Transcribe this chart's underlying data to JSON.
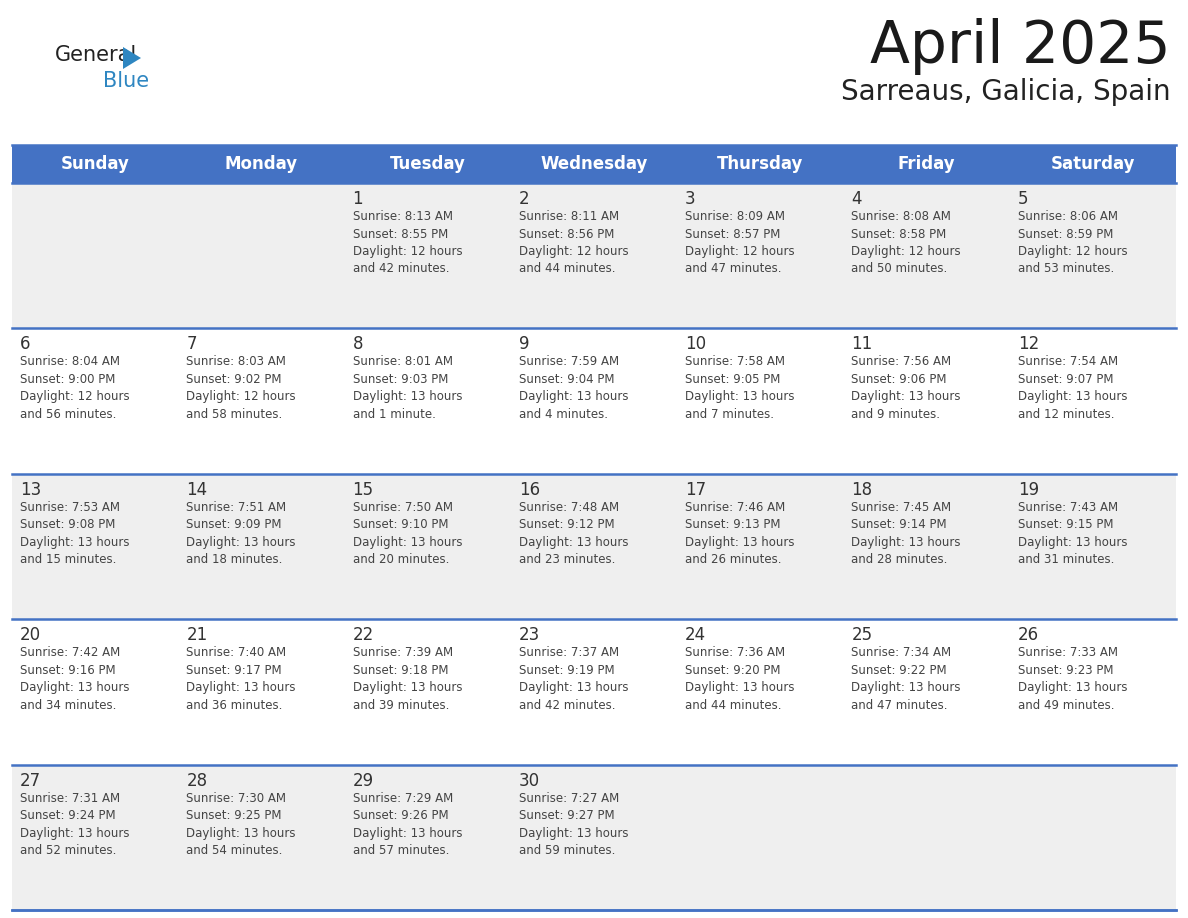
{
  "title": "April 2025",
  "subtitle": "Sarreaus, Galicia, Spain",
  "header_bg": "#4472C4",
  "header_text_color": "#FFFFFF",
  "day_names": [
    "Sunday",
    "Monday",
    "Tuesday",
    "Wednesday",
    "Thursday",
    "Friday",
    "Saturday"
  ],
  "row_bg_odd": "#EFEFEF",
  "row_bg_even": "#FFFFFF",
  "cell_text_color": "#444444",
  "day_num_color": "#333333",
  "grid_line_color": "#4472C4",
  "logo_general_color": "#222222",
  "logo_blue_color": "#2E86C1",
  "logo_triangle_color": "#2E86C1",
  "weeks": [
    [
      {
        "day": "",
        "info": ""
      },
      {
        "day": "",
        "info": ""
      },
      {
        "day": "1",
        "info": "Sunrise: 8:13 AM\nSunset: 8:55 PM\nDaylight: 12 hours\nand 42 minutes."
      },
      {
        "day": "2",
        "info": "Sunrise: 8:11 AM\nSunset: 8:56 PM\nDaylight: 12 hours\nand 44 minutes."
      },
      {
        "day": "3",
        "info": "Sunrise: 8:09 AM\nSunset: 8:57 PM\nDaylight: 12 hours\nand 47 minutes."
      },
      {
        "day": "4",
        "info": "Sunrise: 8:08 AM\nSunset: 8:58 PM\nDaylight: 12 hours\nand 50 minutes."
      },
      {
        "day": "5",
        "info": "Sunrise: 8:06 AM\nSunset: 8:59 PM\nDaylight: 12 hours\nand 53 minutes."
      }
    ],
    [
      {
        "day": "6",
        "info": "Sunrise: 8:04 AM\nSunset: 9:00 PM\nDaylight: 12 hours\nand 56 minutes."
      },
      {
        "day": "7",
        "info": "Sunrise: 8:03 AM\nSunset: 9:02 PM\nDaylight: 12 hours\nand 58 minutes."
      },
      {
        "day": "8",
        "info": "Sunrise: 8:01 AM\nSunset: 9:03 PM\nDaylight: 13 hours\nand 1 minute."
      },
      {
        "day": "9",
        "info": "Sunrise: 7:59 AM\nSunset: 9:04 PM\nDaylight: 13 hours\nand 4 minutes."
      },
      {
        "day": "10",
        "info": "Sunrise: 7:58 AM\nSunset: 9:05 PM\nDaylight: 13 hours\nand 7 minutes."
      },
      {
        "day": "11",
        "info": "Sunrise: 7:56 AM\nSunset: 9:06 PM\nDaylight: 13 hours\nand 9 minutes."
      },
      {
        "day": "12",
        "info": "Sunrise: 7:54 AM\nSunset: 9:07 PM\nDaylight: 13 hours\nand 12 minutes."
      }
    ],
    [
      {
        "day": "13",
        "info": "Sunrise: 7:53 AM\nSunset: 9:08 PM\nDaylight: 13 hours\nand 15 minutes."
      },
      {
        "day": "14",
        "info": "Sunrise: 7:51 AM\nSunset: 9:09 PM\nDaylight: 13 hours\nand 18 minutes."
      },
      {
        "day": "15",
        "info": "Sunrise: 7:50 AM\nSunset: 9:10 PM\nDaylight: 13 hours\nand 20 minutes."
      },
      {
        "day": "16",
        "info": "Sunrise: 7:48 AM\nSunset: 9:12 PM\nDaylight: 13 hours\nand 23 minutes."
      },
      {
        "day": "17",
        "info": "Sunrise: 7:46 AM\nSunset: 9:13 PM\nDaylight: 13 hours\nand 26 minutes."
      },
      {
        "day": "18",
        "info": "Sunrise: 7:45 AM\nSunset: 9:14 PM\nDaylight: 13 hours\nand 28 minutes."
      },
      {
        "day": "19",
        "info": "Sunrise: 7:43 AM\nSunset: 9:15 PM\nDaylight: 13 hours\nand 31 minutes."
      }
    ],
    [
      {
        "day": "20",
        "info": "Sunrise: 7:42 AM\nSunset: 9:16 PM\nDaylight: 13 hours\nand 34 minutes."
      },
      {
        "day": "21",
        "info": "Sunrise: 7:40 AM\nSunset: 9:17 PM\nDaylight: 13 hours\nand 36 minutes."
      },
      {
        "day": "22",
        "info": "Sunrise: 7:39 AM\nSunset: 9:18 PM\nDaylight: 13 hours\nand 39 minutes."
      },
      {
        "day": "23",
        "info": "Sunrise: 7:37 AM\nSunset: 9:19 PM\nDaylight: 13 hours\nand 42 minutes."
      },
      {
        "day": "24",
        "info": "Sunrise: 7:36 AM\nSunset: 9:20 PM\nDaylight: 13 hours\nand 44 minutes."
      },
      {
        "day": "25",
        "info": "Sunrise: 7:34 AM\nSunset: 9:22 PM\nDaylight: 13 hours\nand 47 minutes."
      },
      {
        "day": "26",
        "info": "Sunrise: 7:33 AM\nSunset: 9:23 PM\nDaylight: 13 hours\nand 49 minutes."
      }
    ],
    [
      {
        "day": "27",
        "info": "Sunrise: 7:31 AM\nSunset: 9:24 PM\nDaylight: 13 hours\nand 52 minutes."
      },
      {
        "day": "28",
        "info": "Sunrise: 7:30 AM\nSunset: 9:25 PM\nDaylight: 13 hours\nand 54 minutes."
      },
      {
        "day": "29",
        "info": "Sunrise: 7:29 AM\nSunset: 9:26 PM\nDaylight: 13 hours\nand 57 minutes."
      },
      {
        "day": "30",
        "info": "Sunrise: 7:27 AM\nSunset: 9:27 PM\nDaylight: 13 hours\nand 59 minutes."
      },
      {
        "day": "",
        "info": ""
      },
      {
        "day": "",
        "info": ""
      },
      {
        "day": "",
        "info": ""
      }
    ]
  ]
}
